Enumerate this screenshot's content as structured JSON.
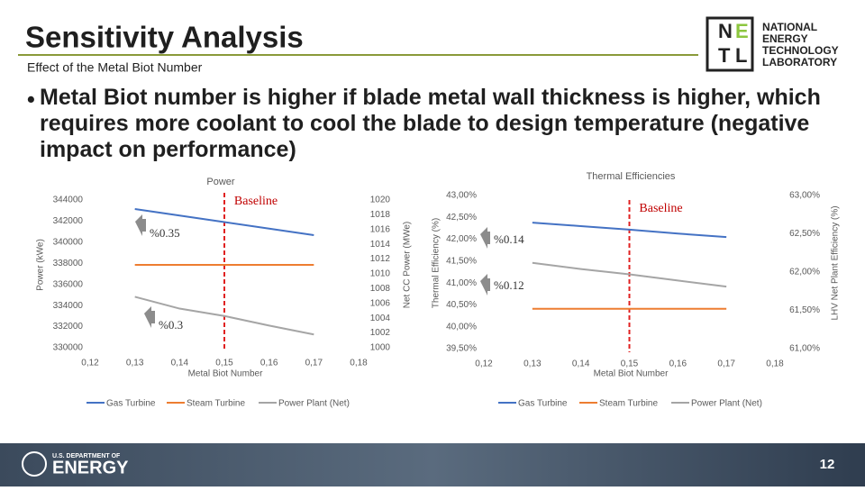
{
  "header": {
    "title": "Sensitivity Analysis",
    "subtitle": "Effect of the Metal Biot Number",
    "logo_letters": [
      "N",
      "E",
      "T",
      "L"
    ],
    "logo_lines": [
      "NATIONAL",
      "ENERGY",
      "TECHNOLOGY",
      "LABORATORY"
    ]
  },
  "bullet": "Metal Biot number is higher if blade metal wall thickness is higher, which requires more coolant to cool the blade to design temperature (negative impact on performance)",
  "footer": {
    "agency_small": "U.S. DEPARTMENT OF",
    "agency_large": "ENERGY",
    "page_number": "12"
  },
  "chart_data": [
    {
      "type": "line",
      "title": "Power",
      "xlabel": "Metal Biot Number",
      "ylabel": "Power (kWe)",
      "y2label": "Net CC Power (MWe)",
      "x": [
        0.13,
        0.14,
        0.15,
        0.16,
        0.17
      ],
      "series": [
        {
          "name": "Gas Turbine",
          "color": "#4472c4",
          "values": [
            343150,
            342530,
            341910,
            341290,
            340670
          ]
        },
        {
          "name": "Steam Turbine",
          "color": "#ed7d31",
          "values": [
            337850,
            337850,
            337850,
            337850,
            337850
          ]
        },
        {
          "name": "Power Plant (Net)",
          "color": "#a5a5a5",
          "axis": "y2",
          "values": [
            1006.9,
            1005.3,
            1004.3,
            1003.0,
            1001.8
          ]
        }
      ],
      "xlim": [
        0.12,
        0.18
      ],
      "xticks": [
        {
          "value": 0.12,
          "label": "0,12"
        },
        {
          "value": 0.13,
          "label": "0,13"
        },
        {
          "value": 0.14,
          "label": "0,14"
        },
        {
          "value": 0.15,
          "label": "0,15"
        },
        {
          "value": 0.16,
          "label": "0,16"
        },
        {
          "value": 0.17,
          "label": "0,17"
        },
        {
          "value": 0.18,
          "label": "0,18"
        }
      ],
      "ylim": [
        330000,
        344000
      ],
      "yticks": [
        330000,
        332000,
        334000,
        336000,
        338000,
        340000,
        342000,
        344000
      ],
      "y2lim": [
        1000,
        1020
      ],
      "y2ticks": [
        1000,
        1002,
        1004,
        1006,
        1008,
        1010,
        1012,
        1014,
        1016,
        1018,
        1020
      ],
      "baseline": {
        "label": "Baseline",
        "x": 0.15
      },
      "annotations": [
        "%0.35",
        "%0.3"
      ]
    },
    {
      "type": "line",
      "title": "Thermal Efficiencies",
      "xlabel": "Metal Biot Number",
      "ylabel": "Thermal Efficiency (%)",
      "y2label": "LHV Net Plant Efficiency (%)",
      "x": [
        0.13,
        0.14,
        0.15,
        0.16,
        0.17
      ],
      "series": [
        {
          "name": "Gas Turbine",
          "color": "#4472c4",
          "values": [
            42.38,
            42.3,
            42.22,
            42.13,
            42.05
          ]
        },
        {
          "name": "Steam Turbine",
          "color": "#ed7d31",
          "values": [
            40.41,
            40.41,
            40.41,
            40.41,
            40.41
          ]
        },
        {
          "name": "Power Plant (Net)",
          "color": "#a5a5a5",
          "axis": "y2",
          "values": [
            62.12,
            62.04,
            61.97,
            61.89,
            61.81
          ]
        }
      ],
      "xlim": [
        0.12,
        0.18
      ],
      "xticks": [
        {
          "value": 0.12,
          "label": "0,12"
        },
        {
          "value": 0.13,
          "label": "0,13"
        },
        {
          "value": 0.14,
          "label": "0,14"
        },
        {
          "value": 0.15,
          "label": "0,15"
        },
        {
          "value": 0.16,
          "label": "0,16"
        },
        {
          "value": 0.17,
          "label": "0,17"
        },
        {
          "value": 0.18,
          "label": "0,18"
        }
      ],
      "ylim": [
        39.5,
        43
      ],
      "yticks": [
        {
          "value": 39.5,
          "label": "39,50%"
        },
        {
          "value": 40,
          "label": "40,00%"
        },
        {
          "value": 40.5,
          "label": "40,50%"
        },
        {
          "value": 41,
          "label": "41,00%"
        },
        {
          "value": 41.5,
          "label": "41,50%"
        },
        {
          "value": 42,
          "label": "42,00%"
        },
        {
          "value": 42.5,
          "label": "42,50%"
        },
        {
          "value": 43,
          "label": "43,00%"
        }
      ],
      "y2lim": [
        61,
        63
      ],
      "y2ticks": [
        {
          "value": 61,
          "label": "61,00%"
        },
        {
          "value": 61.5,
          "label": "61,50%"
        },
        {
          "value": 62,
          "label": "62,00%"
        },
        {
          "value": 62.5,
          "label": "62,50%"
        },
        {
          "value": 63,
          "label": "63,00%"
        }
      ],
      "baseline": {
        "label": "Baseline",
        "x": 0.15
      },
      "annotations": [
        "%0.14",
        "%0.12"
      ]
    }
  ]
}
